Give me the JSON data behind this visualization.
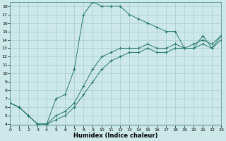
{
  "xlabel": "Humidex (Indice chaleur)",
  "background_color": "#cce8e8",
  "grid_color": "#aacccc",
  "line_color": "#2a7a6a",
  "line1_x": [
    0,
    1,
    2,
    3,
    4,
    5,
    6,
    7,
    8,
    9,
    10,
    11,
    12,
    13,
    14,
    15,
    16,
    17,
    18,
    19,
    20,
    21,
    22,
    23
  ],
  "line1_y": [
    6.5,
    6.0,
    5.0,
    4.0,
    4.0,
    7.0,
    7.5,
    10.5,
    17.0,
    18.5,
    18.0,
    18.0,
    18.0,
    17.0,
    16.5,
    16.0,
    15.5,
    15.0,
    15.0,
    13.0,
    13.0,
    14.5,
    13.0,
    14.5
  ],
  "line2_x": [
    0,
    1,
    2,
    3,
    4,
    5,
    6,
    7,
    8,
    9,
    10,
    11,
    12,
    13,
    14,
    15,
    16,
    17,
    18,
    19,
    20,
    21,
    22,
    23
  ],
  "line2_y": [
    6.5,
    6.0,
    5.0,
    4.0,
    4.0,
    5.0,
    5.5,
    6.5,
    8.5,
    10.5,
    12.0,
    12.5,
    13.0,
    13.0,
    13.0,
    13.5,
    13.0,
    13.0,
    13.5,
    13.0,
    13.5,
    14.0,
    13.5,
    14.5
  ],
  "line3_x": [
    0,
    1,
    2,
    3,
    4,
    5,
    6,
    7,
    8,
    9,
    10,
    11,
    12,
    13,
    14,
    15,
    16,
    17,
    18,
    19,
    20,
    21,
    22,
    23
  ],
  "line3_y": [
    6.5,
    6.0,
    5.0,
    4.0,
    4.0,
    4.5,
    5.0,
    6.0,
    7.5,
    9.0,
    10.5,
    11.5,
    12.0,
    12.5,
    12.5,
    13.0,
    12.5,
    12.5,
    13.0,
    13.0,
    13.0,
    13.5,
    13.0,
    14.0
  ],
  "xlim": [
    0,
    23
  ],
  "ylim": [
    3.8,
    18.5
  ],
  "yticks": [
    4,
    5,
    6,
    7,
    8,
    9,
    10,
    11,
    12,
    13,
    14,
    15,
    16,
    17,
    18
  ],
  "xticks": [
    0,
    1,
    2,
    3,
    4,
    5,
    6,
    7,
    8,
    9,
    10,
    11,
    12,
    13,
    14,
    15,
    16,
    17,
    18,
    19,
    20,
    21,
    22,
    23
  ],
  "tick_fontsize": 4.5,
  "label_fontsize": 6.0
}
